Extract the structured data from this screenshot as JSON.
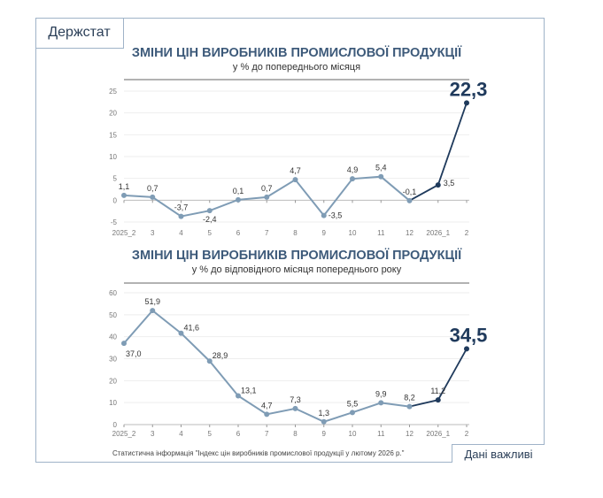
{
  "logo": "Держстат",
  "badge": "Дані важливі",
  "source": "Статистична інформація \"Індекс цін виробників промислової продукції у лютому 2026 р.\"",
  "colors": {
    "series": "#7f9cb5",
    "highlight": "#1f3a5c",
    "title": "#3d5a7a",
    "frame": "#9fb3c8"
  },
  "chart_data": [
    {
      "type": "line",
      "title": "ЗМІНИ ЦІН ВИРОБНИКІВ ПРОМИСЛОВОЇ ПРОДУКЦІЇ",
      "subtitle": "у % до попереднього місяця",
      "categories": [
        "2025_2",
        "3",
        "4",
        "5",
        "6",
        "7",
        "8",
        "9",
        "10",
        "11",
        "12",
        "2026_1",
        "2"
      ],
      "values": [
        1.1,
        0.7,
        -3.7,
        -2.4,
        0.1,
        0.7,
        4.7,
        -3.5,
        4.9,
        5.4,
        -0.1,
        3.5,
        22.3
      ],
      "labels": [
        "1,1",
        "0,7",
        "-3,7",
        "-2,4",
        "0,1",
        "0,7",
        "4,7",
        "-3,5",
        "4,9",
        "5,4",
        "-0,1",
        "3,5",
        "22,3"
      ],
      "ylim": [
        -5,
        25
      ],
      "yticks": [
        -5,
        0,
        5,
        10,
        15,
        20,
        25
      ],
      "grid": true,
      "highlight_from": "12"
    },
    {
      "type": "line",
      "title": "ЗМІНИ ЦІН ВИРОБНИКІВ ПРОМИСЛОВОЇ ПРОДУКЦІЇ",
      "subtitle": "у % до відповідного місяця попереднього року",
      "categories": [
        "2025_2",
        "3",
        "4",
        "5",
        "6",
        "7",
        "8",
        "9",
        "10",
        "11",
        "12",
        "2026_1",
        "2"
      ],
      "values": [
        37.0,
        51.9,
        41.6,
        28.9,
        13.1,
        4.7,
        7.3,
        1.3,
        5.5,
        9.9,
        8.2,
        11.2,
        34.5
      ],
      "labels": [
        "37,0",
        "51,9",
        "41,6",
        "28,9",
        "13,1",
        "4,7",
        "7,3",
        "1,3",
        "5,5",
        "9,9",
        "8,2",
        "11,2",
        "34,5"
      ],
      "ylim": [
        0,
        60
      ],
      "yticks": [
        0,
        10,
        20,
        30,
        40,
        50,
        60
      ],
      "grid": true,
      "highlight_from": "12"
    }
  ]
}
